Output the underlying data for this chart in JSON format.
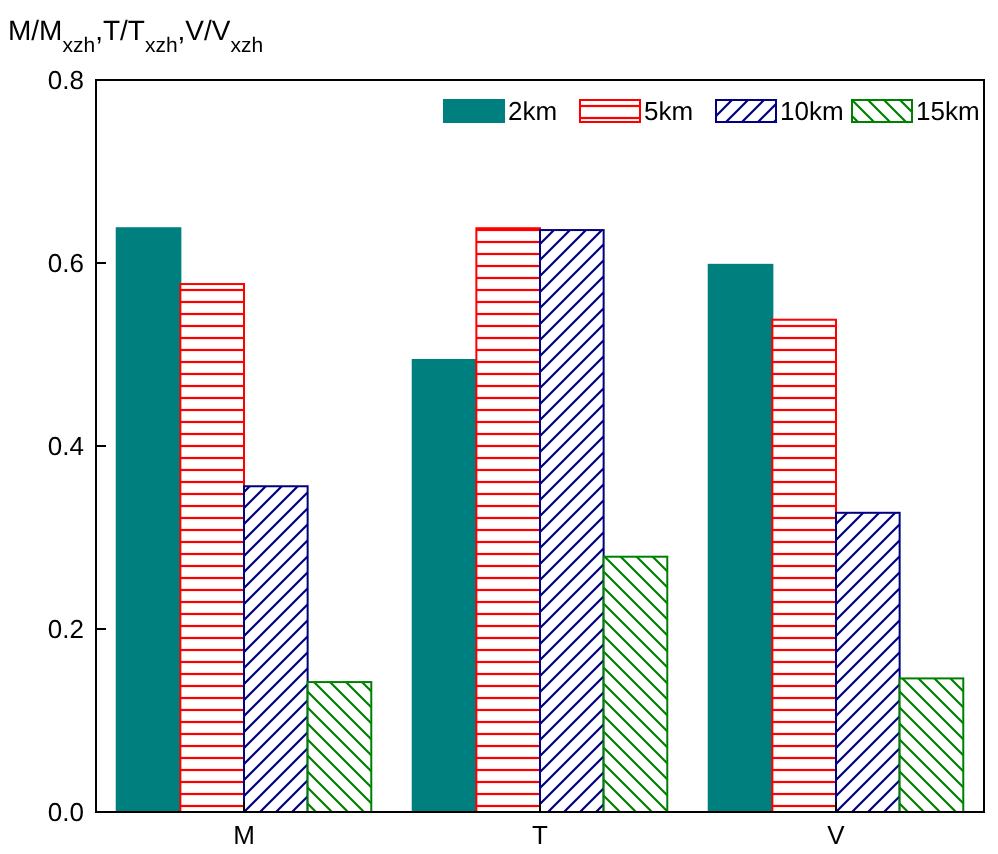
{
  "chart_data": {
    "type": "bar",
    "ylabel": "M/M$_{xzh}$,T/T$_{xzh}$,V/V$_{xzh}$",
    "categories": [
      "M",
      "T",
      "V"
    ],
    "series": [
      {
        "name": "2km",
        "color": "#007f7f",
        "values": [
          0.638,
          0.494,
          0.598
        ]
      },
      {
        "name": "5km",
        "color": "#ff0000",
        "values": [
          0.577,
          0.638,
          0.538
        ]
      },
      {
        "name": "10km",
        "color": "#000080",
        "values": [
          0.356,
          0.636,
          0.327
        ]
      },
      {
        "name": "15km",
        "color": "#008000",
        "values": [
          0.142,
          0.279,
          0.146
        ]
      }
    ],
    "ylim": [
      0,
      0.8
    ],
    "yticks": [
      "0.0",
      0.2,
      0.4,
      0.6,
      0.8
    ],
    "legend": "top right",
    "grid": false
  }
}
